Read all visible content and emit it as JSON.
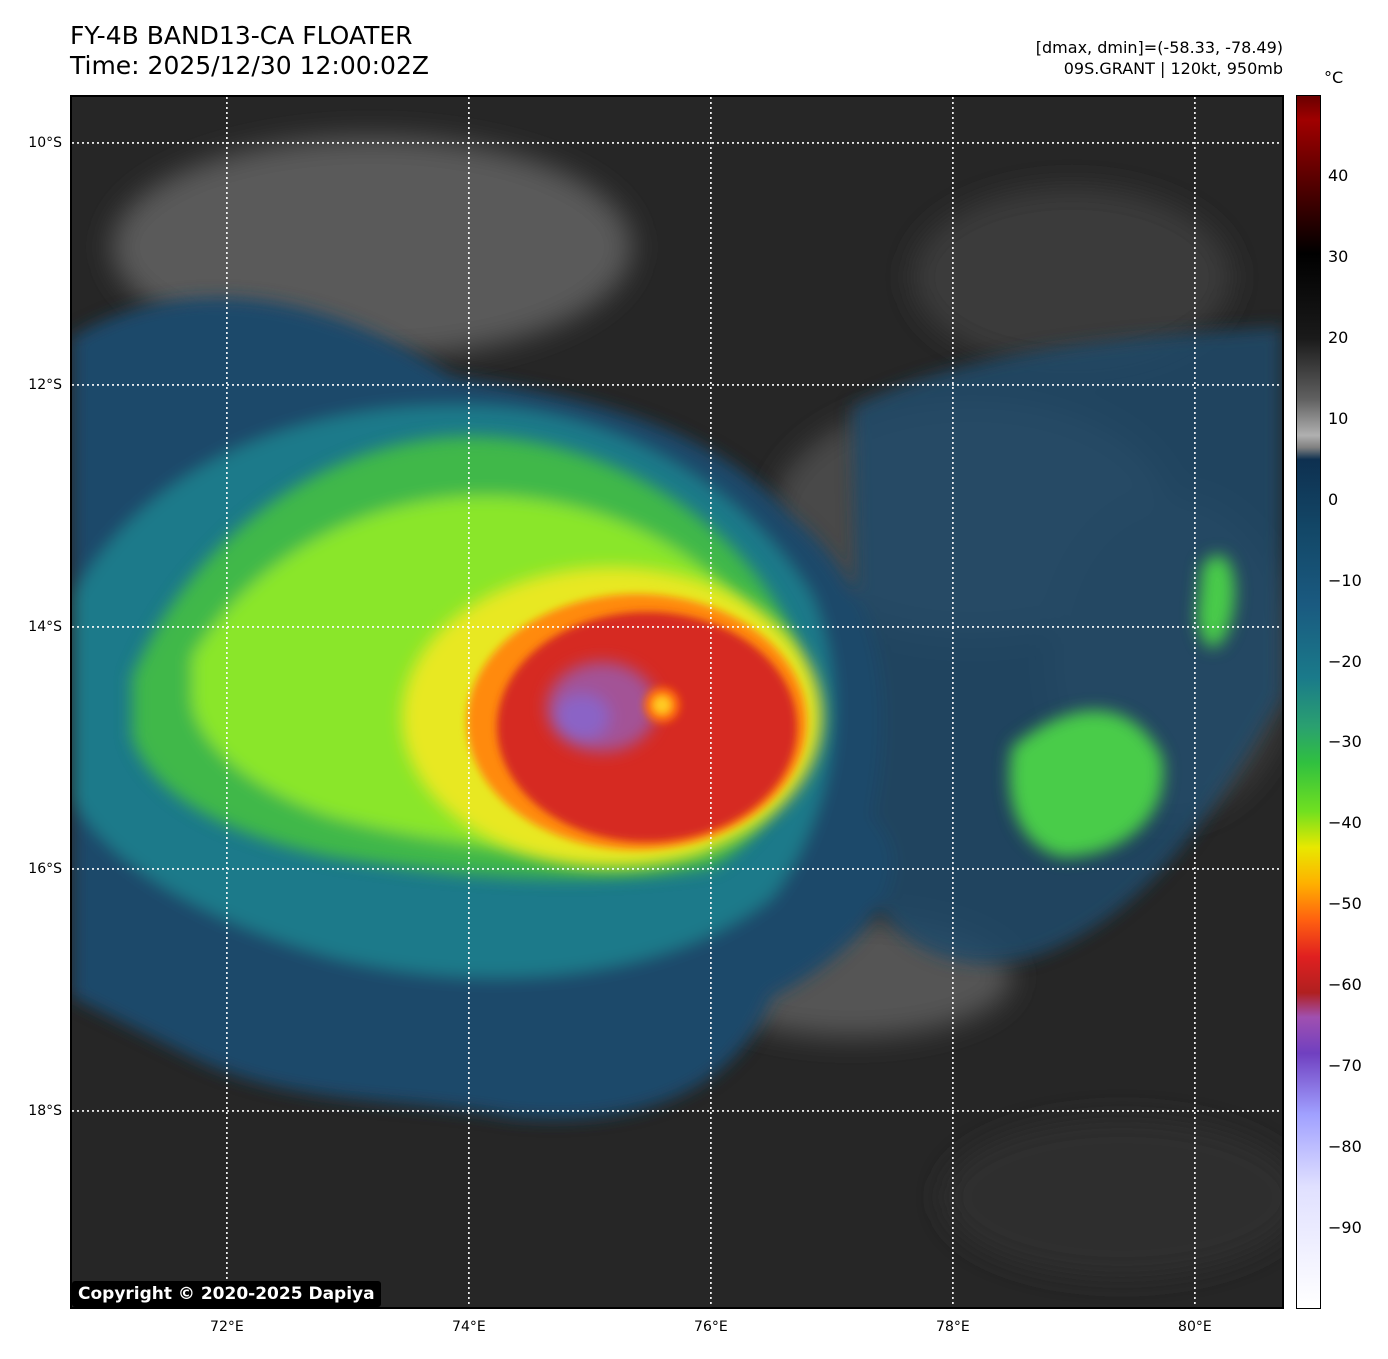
{
  "title": {
    "line1": "FY-4B BAND13-CA FLOATER",
    "line2": "Time: 2025/12/30 12:00:02Z"
  },
  "info": {
    "range": "[dmax, dmin]=(-58.33, -78.49)",
    "storm": "09S.GRANT | 120kt, 950mb"
  },
  "latitudes": [
    {
      "label": "10°S",
      "value": -10
    },
    {
      "label": "12°S",
      "value": -12
    },
    {
      "label": "14°S",
      "value": -14
    },
    {
      "label": "16°S",
      "value": -16
    },
    {
      "label": "18°S",
      "value": -18
    }
  ],
  "longitudes": [
    {
      "label": "72°E",
      "value": 72
    },
    {
      "label": "74°E",
      "value": 74
    },
    {
      "label": "76°E",
      "value": 76
    },
    {
      "label": "78°E",
      "value": 78
    },
    {
      "label": "80°E",
      "value": 80
    }
  ],
  "extent": {
    "lon_min": 70.72,
    "lon_max": 80.72,
    "lat_max": -9.62,
    "lat_min": -19.62
  },
  "colorbar": {
    "unit": "°C",
    "ticks": [
      {
        "label": "40",
        "value": 40
      },
      {
        "label": "30",
        "value": 30
      },
      {
        "label": "20",
        "value": 20
      },
      {
        "label": "10",
        "value": 10
      },
      {
        "label": "0",
        "value": 0
      },
      {
        "label": "−10",
        "value": -10
      },
      {
        "label": "−20",
        "value": -20
      },
      {
        "label": "−30",
        "value": -30
      },
      {
        "label": "−40",
        "value": -40
      },
      {
        "label": "−50",
        "value": -50
      },
      {
        "label": "−60",
        "value": -60
      },
      {
        "label": "−70",
        "value": -70
      },
      {
        "label": "−80",
        "value": -80
      },
      {
        "label": "−90",
        "value": -90
      }
    ],
    "range": [
      -100,
      50
    ]
  },
  "copyright": "Copyright © 2020-2025 Dapiya",
  "colors": {
    "background_cloud": "#2a2a2a",
    "gridline": "#ffffff",
    "eye_warm": "#ffcc22",
    "coldest": "#8866cc"
  }
}
